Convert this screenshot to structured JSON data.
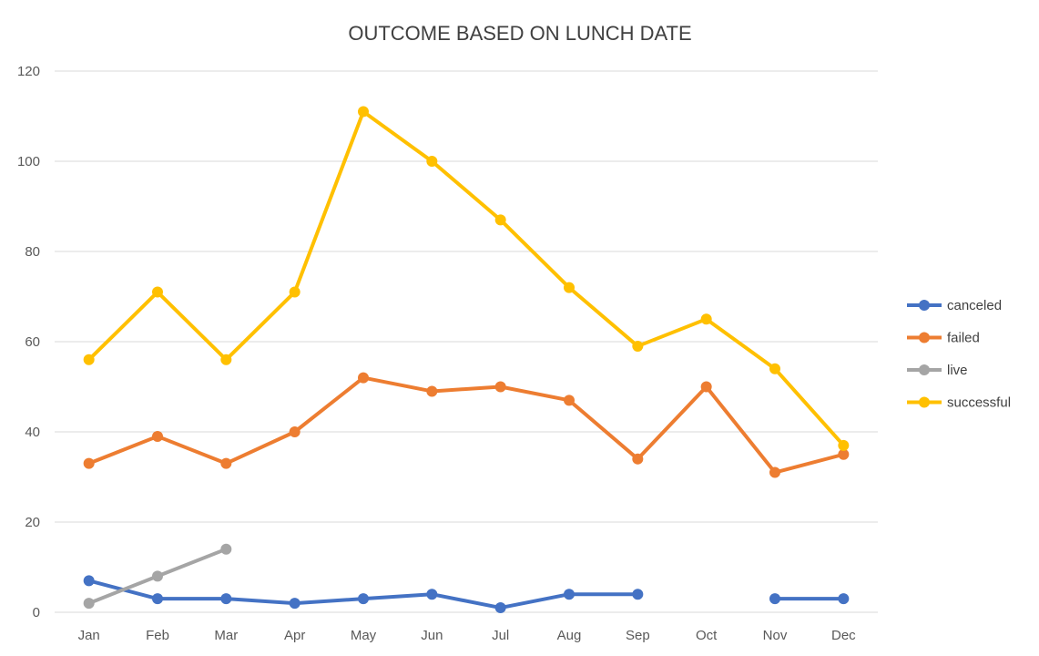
{
  "chart_data": {
    "type": "line",
    "title": "OUTCOME BASED ON LUNCH DATE",
    "xlabel": "",
    "ylabel": "",
    "categories": [
      "Jan",
      "Feb",
      "Mar",
      "Apr",
      "May",
      "Jun",
      "Jul",
      "Aug",
      "Sep",
      "Oct",
      "Nov",
      "Dec"
    ],
    "ylim": [
      0,
      120
    ],
    "yticks": [
      0,
      20,
      40,
      60,
      80,
      100,
      120
    ],
    "grid": true,
    "legend_position": "right",
    "series": [
      {
        "name": "canceled",
        "color": "#4472c4",
        "values": [
          7,
          3,
          3,
          2,
          3,
          4,
          1,
          4,
          4,
          null,
          3,
          3
        ]
      },
      {
        "name": "failed",
        "color": "#ed7d31",
        "values": [
          33,
          39,
          33,
          40,
          52,
          49,
          50,
          47,
          34,
          50,
          31,
          35
        ]
      },
      {
        "name": "live",
        "color": "#a5a5a5",
        "values": [
          2,
          8,
          14,
          null,
          null,
          null,
          null,
          null,
          null,
          null,
          null,
          null
        ]
      },
      {
        "name": "successful",
        "color": "#ffc000",
        "values": [
          56,
          71,
          56,
          71,
          111,
          100,
          87,
          72,
          59,
          65,
          54,
          37
        ]
      }
    ]
  }
}
